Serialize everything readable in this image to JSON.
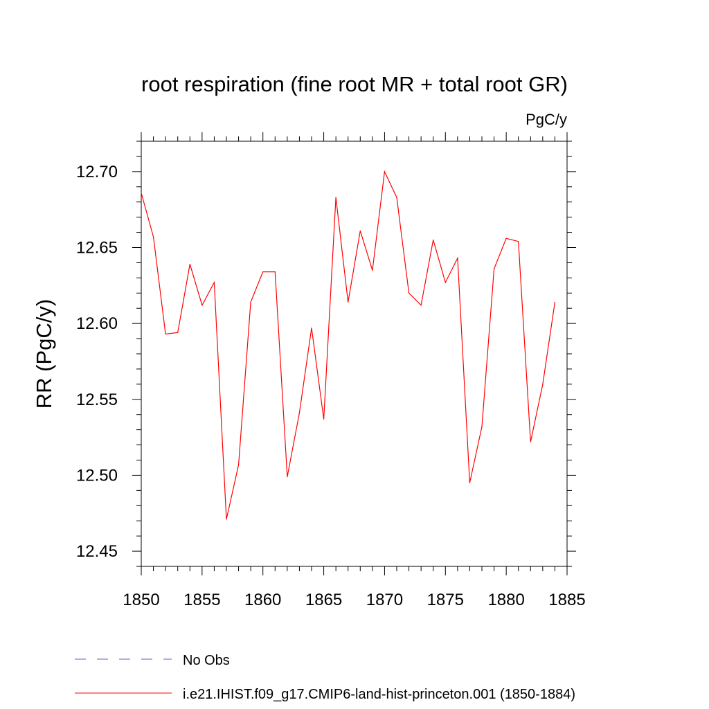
{
  "chart_data": {
    "type": "line",
    "title": "root respiration (fine root MR + total root GR)",
    "units_label": "PgC/y",
    "ylabel": "RR  (PgC/y)",
    "xlabel": "",
    "xlim": [
      1850,
      1885
    ],
    "ylim": [
      12.44,
      12.72
    ],
    "x_ticks": [
      1850,
      1855,
      1860,
      1865,
      1870,
      1875,
      1880,
      1885
    ],
    "x_tick_labels": [
      "1850",
      "1855",
      "1860",
      "1865",
      "1870",
      "1875",
      "1880",
      "1885"
    ],
    "y_ticks": [
      12.45,
      12.5,
      12.55,
      12.6,
      12.65,
      12.7
    ],
    "y_tick_labels": [
      "12.45",
      "12.50",
      "12.55",
      "12.60",
      "12.65",
      "12.70"
    ],
    "grid": false,
    "legend_position": "bottom",
    "series": [
      {
        "name": "i.e21.IHIST.f09_g17.CMIP6-land-hist-princeton.001 (1850-1884)",
        "color": "#ff0000",
        "dash": "solid",
        "x": [
          1850,
          1851,
          1852,
          1853,
          1854,
          1855,
          1856,
          1857,
          1858,
          1859,
          1860,
          1861,
          1862,
          1863,
          1864,
          1865,
          1866,
          1867,
          1868,
          1869,
          1870,
          1871,
          1872,
          1873,
          1874,
          1875,
          1876,
          1877,
          1878,
          1879,
          1880,
          1881,
          1882,
          1883,
          1884
        ],
        "y": [
          12.686,
          12.657,
          12.593,
          12.594,
          12.639,
          12.612,
          12.627,
          12.471,
          12.507,
          12.614,
          12.634,
          12.634,
          12.499,
          12.541,
          12.597,
          12.537,
          12.683,
          12.614,
          12.661,
          12.635,
          12.7,
          12.683,
          12.62,
          12.612,
          12.655,
          12.627,
          12.643,
          12.495,
          12.532,
          12.636,
          12.656,
          12.654,
          12.522,
          12.56,
          12.614
        ]
      }
    ],
    "legend": [
      {
        "label": "No Obs",
        "color": "#6a5acd",
        "dash": "dashed"
      },
      {
        "label": "i.e21.IHIST.f09_g17.CMIP6-land-hist-princeton.001 (1850-1884)",
        "color": "#ff0000",
        "dash": "solid"
      }
    ]
  }
}
